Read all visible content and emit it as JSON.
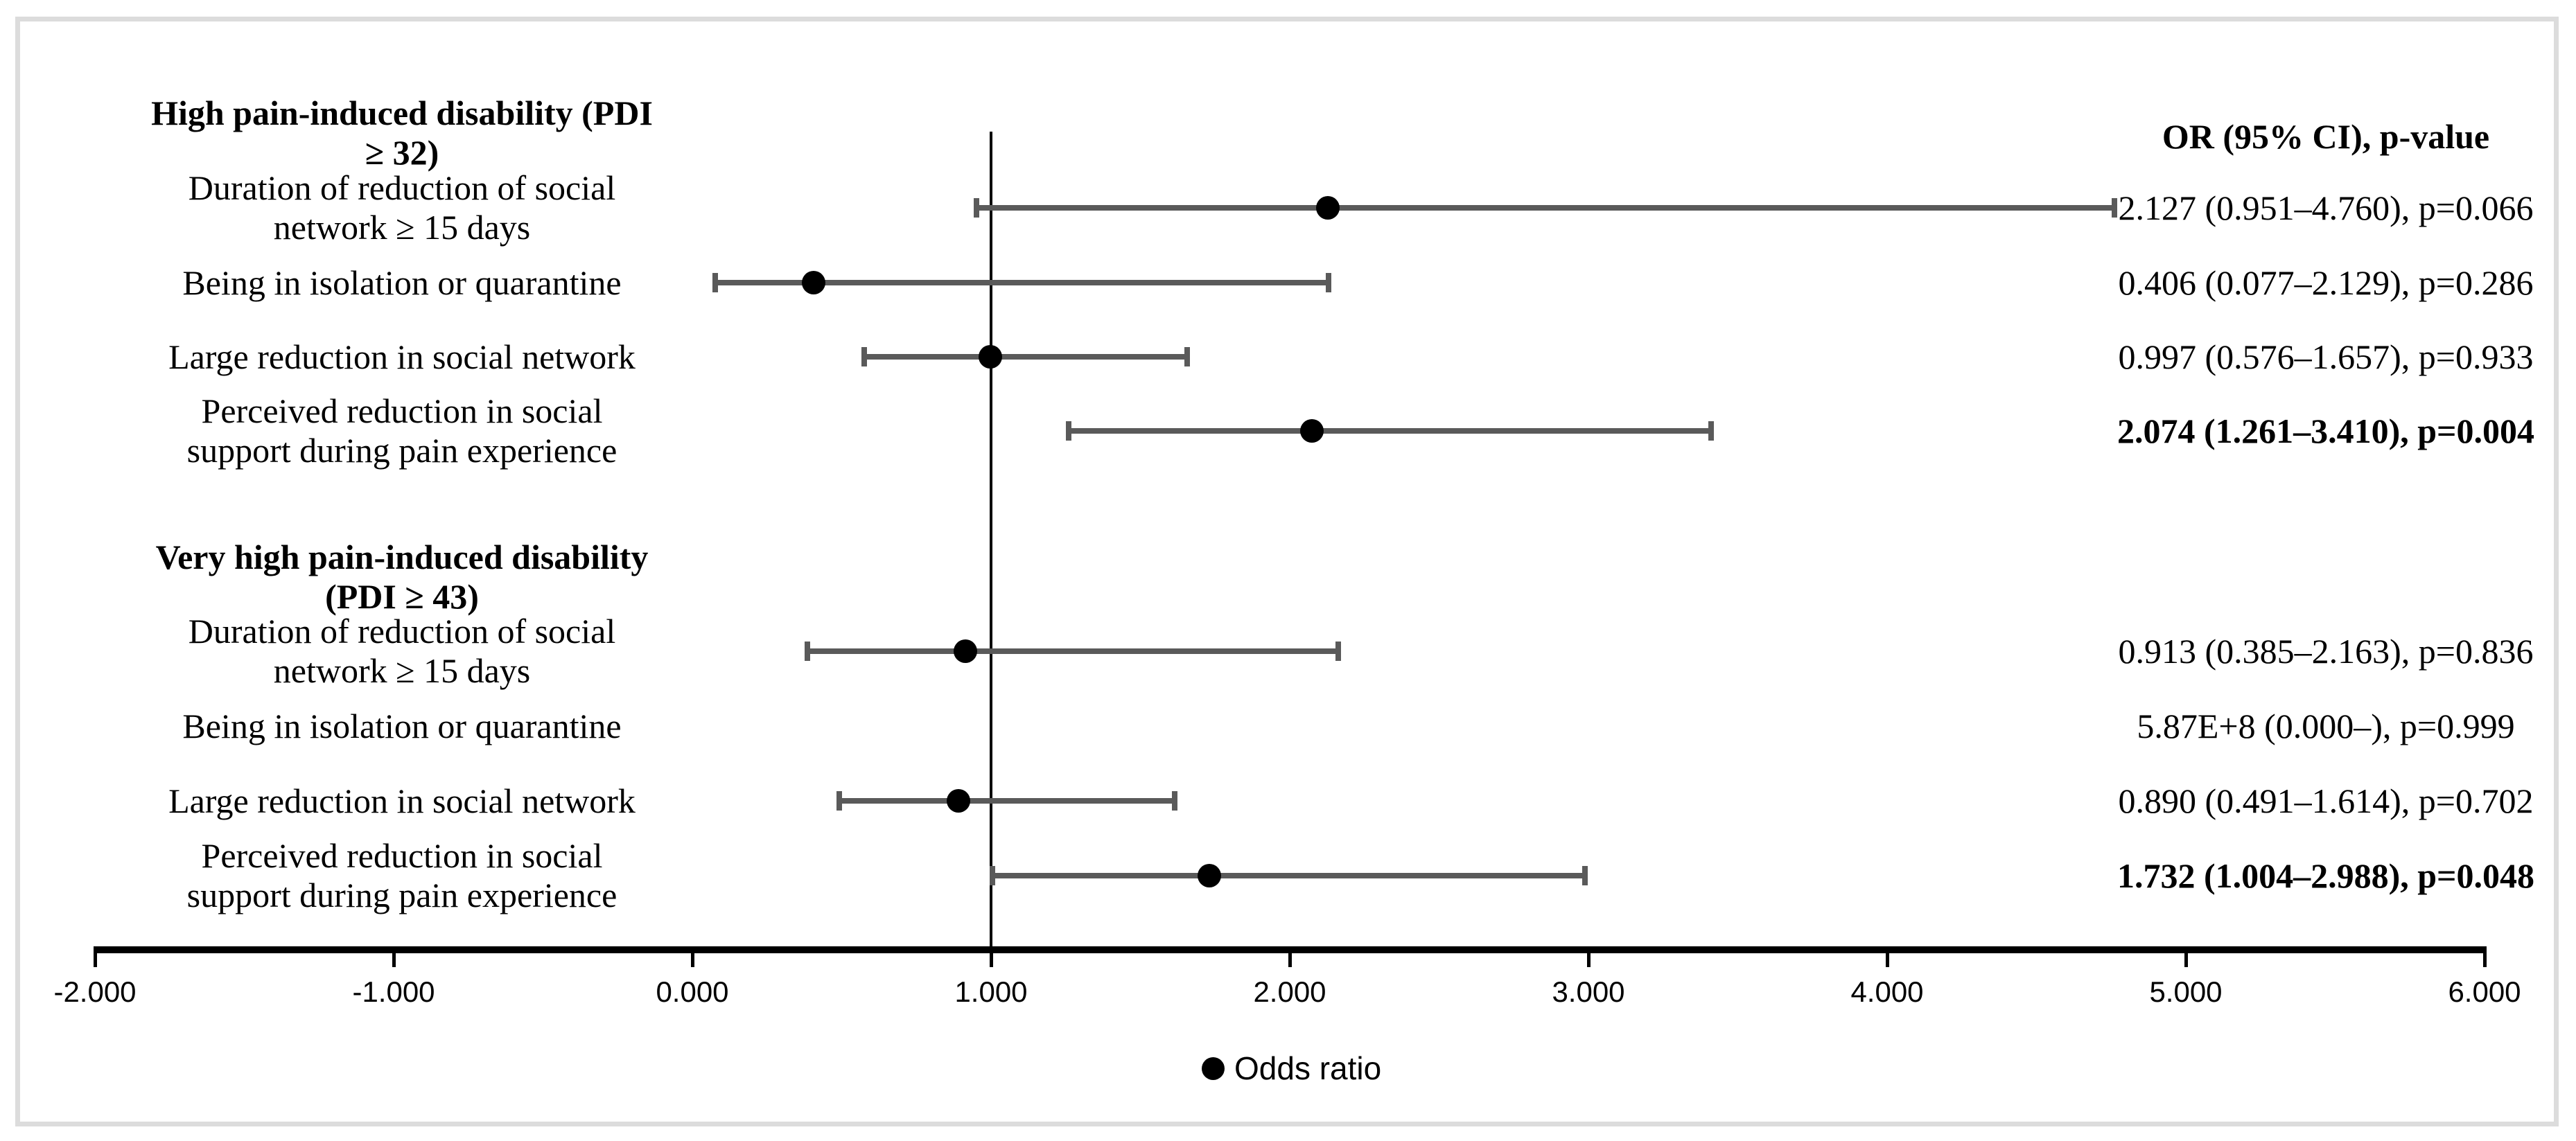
{
  "chart_data": {
    "type": "scatter",
    "subtype": "forest-plot-odds-ratio",
    "value_column_header": "OR (95% CI), p-value",
    "legend_label": "Odds ratio",
    "legend_marker": "filled-circle-icon",
    "x_axis": {
      "min": -2,
      "max": 6,
      "tick_values": [
        -2,
        -1,
        0,
        1,
        2,
        3,
        4,
        5,
        6
      ],
      "tick_labels": [
        "-2.000",
        "-1.000",
        "0.000",
        "1.000",
        "2.000",
        "3.000",
        "4.000",
        "5.000",
        "6.000"
      ],
      "reference_line_x": 1.0,
      "grid": false
    },
    "marker_color": "#000000",
    "error_bar_color": "#5a5a5a",
    "frame_border_color": "#dcdcdc",
    "groups": [
      {
        "header": "High pain-induced disability (PDI\n≥ 32)",
        "rows": [
          {
            "label": "Duration of reduction of social\nnetwork ≥ 15 days",
            "or": 2.127,
            "ci_low": 0.951,
            "ci_high": 4.76,
            "p": 0.066,
            "display": "2.127 (0.951–4.760), p=0.066",
            "bold": false,
            "draw_marker": true,
            "draw_bar": true
          },
          {
            "label": "Being in isolation or quarantine",
            "or": 0.406,
            "ci_low": 0.077,
            "ci_high": 2.129,
            "p": 0.286,
            "display": "0.406 (0.077–2.129), p=0.286",
            "bold": false,
            "draw_marker": true,
            "draw_bar": true
          },
          {
            "label": "Large reduction in social network",
            "or": 0.997,
            "ci_low": 0.576,
            "ci_high": 1.657,
            "p": 0.933,
            "display": "0.997 (0.576–1.657), p=0.933",
            "bold": false,
            "draw_marker": true,
            "draw_bar": true
          },
          {
            "label": "Perceived reduction in social\nsupport during pain experience",
            "or": 2.074,
            "ci_low": 1.261,
            "ci_high": 3.41,
            "p": 0.004,
            "display": "2.074 (1.261–3.410), p=0.004",
            "bold": true,
            "draw_marker": true,
            "draw_bar": true
          }
        ]
      },
      {
        "header": "Very high pain-induced disability\n(PDI ≥ 43)",
        "rows": [
          {
            "label": "Duration of reduction of social\nnetwork ≥ 15 days",
            "or": 0.913,
            "ci_low": 0.385,
            "ci_high": 2.163,
            "p": 0.836,
            "display": "0.913 (0.385–2.163), p=0.836",
            "bold": false,
            "draw_marker": true,
            "draw_bar": true
          },
          {
            "label": "Being in isolation or quarantine",
            "or": 587000000,
            "ci_low": 0.0,
            "ci_high": null,
            "p": 0.999,
            "display": "5.87E+8 (0.000–), p=0.999",
            "bold": false,
            "draw_marker": false,
            "draw_bar": false
          },
          {
            "label": "Large reduction in social network",
            "or": 0.89,
            "ci_low": 0.491,
            "ci_high": 1.614,
            "p": 0.702,
            "display": "0.890 (0.491–1.614), p=0.702",
            "bold": false,
            "draw_marker": true,
            "draw_bar": true
          },
          {
            "label": "Perceived reduction in social\nsupport during pain experience",
            "or": 1.732,
            "ci_low": 1.004,
            "ci_high": 2.988,
            "p": 0.048,
            "display": "1.732 (1.004–2.988), p=0.048",
            "bold": true,
            "draw_marker": true,
            "draw_bar": true
          }
        ]
      }
    ]
  }
}
